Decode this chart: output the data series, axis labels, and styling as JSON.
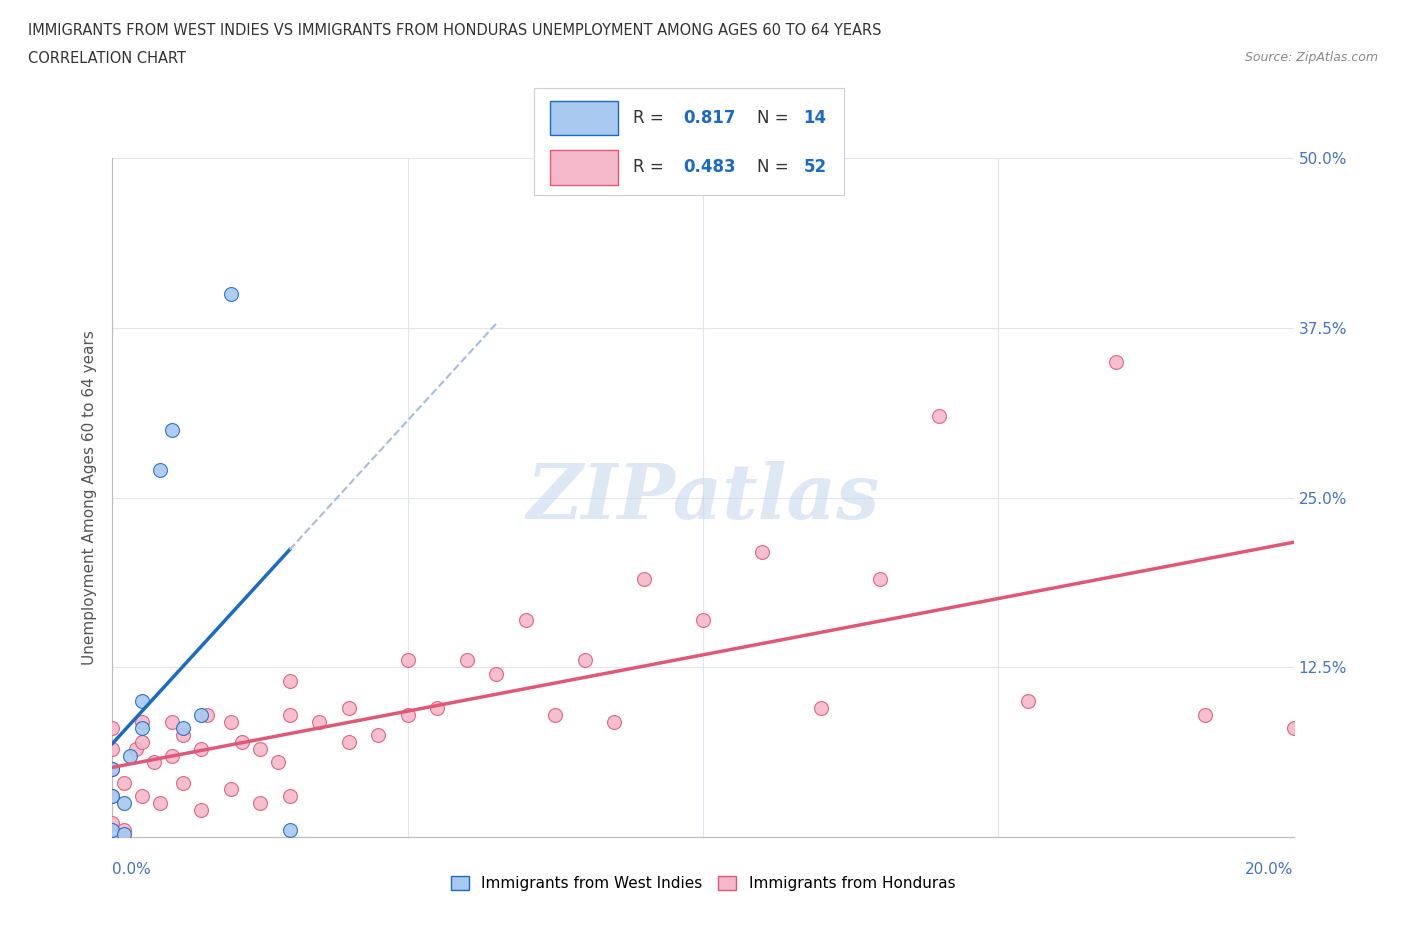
{
  "title_line1": "IMMIGRANTS FROM WEST INDIES VS IMMIGRANTS FROM HONDURAS UNEMPLOYMENT AMONG AGES 60 TO 64 YEARS",
  "title_line2": "CORRELATION CHART",
  "source_text": "Source: ZipAtlas.com",
  "ylabel": "Unemployment Among Ages 60 to 64 years",
  "watermark": "ZIPatlas",
  "west_indies_R": 0.817,
  "west_indies_N": 14,
  "honduras_R": 0.483,
  "honduras_N": 52,
  "west_indies_color": "#a8c8f0",
  "west_indies_line_color": "#1a6bc4",
  "honduras_color": "#f5b8cb",
  "honduras_line_color": "#e05878",
  "xlim": [
    0.0,
    0.2
  ],
  "ylim": [
    0.0,
    0.5
  ],
  "west_indies_x": [
    0.0,
    0.0,
    0.0,
    0.002,
    0.002,
    0.003,
    0.005,
    0.005,
    0.008,
    0.01,
    0.012,
    0.015,
    0.02,
    0.03
  ],
  "west_indies_y": [
    0.005,
    0.03,
    0.05,
    0.002,
    0.025,
    0.06,
    0.08,
    0.1,
    0.27,
    0.3,
    0.08,
    0.09,
    0.4,
    0.005
  ],
  "honduras_x": [
    0.0,
    0.0,
    0.0,
    0.0,
    0.0,
    0.002,
    0.002,
    0.004,
    0.005,
    0.005,
    0.005,
    0.007,
    0.008,
    0.01,
    0.01,
    0.012,
    0.012,
    0.015,
    0.015,
    0.016,
    0.02,
    0.02,
    0.022,
    0.025,
    0.025,
    0.028,
    0.03,
    0.03,
    0.03,
    0.035,
    0.04,
    0.04,
    0.045,
    0.05,
    0.05,
    0.055,
    0.06,
    0.065,
    0.07,
    0.075,
    0.08,
    0.085,
    0.09,
    0.1,
    0.11,
    0.12,
    0.13,
    0.14,
    0.155,
    0.17,
    0.185,
    0.2
  ],
  "honduras_y": [
    0.01,
    0.03,
    0.05,
    0.065,
    0.08,
    0.005,
    0.04,
    0.065,
    0.03,
    0.07,
    0.085,
    0.055,
    0.025,
    0.06,
    0.085,
    0.04,
    0.075,
    0.02,
    0.065,
    0.09,
    0.035,
    0.085,
    0.07,
    0.025,
    0.065,
    0.055,
    0.03,
    0.09,
    0.115,
    0.085,
    0.07,
    0.095,
    0.075,
    0.09,
    0.13,
    0.095,
    0.13,
    0.12,
    0.16,
    0.09,
    0.13,
    0.085,
    0.19,
    0.16,
    0.21,
    0.095,
    0.19,
    0.31,
    0.1,
    0.35,
    0.09,
    0.08
  ]
}
